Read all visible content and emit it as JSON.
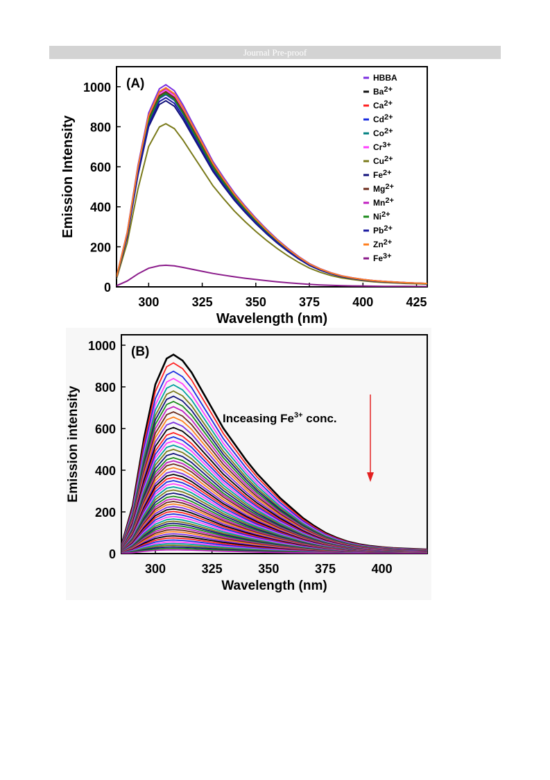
{
  "banner": {
    "text": "Journal Pre-proof"
  },
  "chart_data": [
    {
      "type": "line",
      "panel_label": "(A)",
      "xlabel": "Wavelength (nm)",
      "ylabel": "Emission Intensity",
      "xlim": [
        285,
        430
      ],
      "ylim": [
        0,
        1100
      ],
      "xticks": [
        300,
        325,
        350,
        375,
        400,
        425
      ],
      "yticks": [
        0,
        200,
        400,
        600,
        800,
        1000
      ],
      "grid": false,
      "legend_position": "top-right",
      "x": [
        285,
        290,
        295,
        300,
        305,
        308,
        312,
        316,
        320,
        325,
        330,
        335,
        340,
        345,
        350,
        355,
        360,
        365,
        370,
        375,
        380,
        385,
        390,
        395,
        400,
        405,
        410,
        415,
        420,
        425,
        430
      ],
      "series": [
        {
          "name": "HBBA",
          "color": "#7b2fe0",
          "peak": 1010
        },
        {
          "name": "Ba2+",
          "color": "#111111",
          "peak": 990
        },
        {
          "name": "Ca2+",
          "color": "#ff2020",
          "peak": 975
        },
        {
          "name": "Cd2+",
          "color": "#1a2ee0",
          "peak": 960
        },
        {
          "name": "Co2+",
          "color": "#008080",
          "peak": 970
        },
        {
          "name": "Cr3+",
          "color": "#ff40ff",
          "peak": 985
        },
        {
          "name": "Cu2+",
          "color": "#7a7a1a",
          "peak": 815
        },
        {
          "name": "Fe2+",
          "color": "#10107a",
          "peak": 930
        },
        {
          "name": "Mg2+",
          "color": "#6b2a1a",
          "peak": 975
        },
        {
          "name": "Mn2+",
          "color": "#c020c0",
          "peak": 995
        },
        {
          "name": "Ni2+",
          "color": "#1a8a1a",
          "peak": 965
        },
        {
          "name": "Pb2+",
          "color": "#1a1aa0",
          "peak": 945
        },
        {
          "name": "Zn2+",
          "color": "#ff8020",
          "peak": 995
        },
        {
          "name": "Fe3+",
          "color": "#8a1a8a",
          "peak": 108
        }
      ],
      "shape": [
        0.05,
        0.27,
        0.6,
        0.86,
        0.98,
        1.0,
        0.97,
        0.9,
        0.82,
        0.72,
        0.62,
        0.54,
        0.465,
        0.4,
        0.34,
        0.285,
        0.235,
        0.19,
        0.15,
        0.115,
        0.09,
        0.07,
        0.055,
        0.045,
        0.037,
        0.031,
        0.027,
        0.024,
        0.021,
        0.019,
        0.017
      ],
      "legend": [
        {
          "ion": "HBBA",
          "charge": ""
        },
        {
          "ion": "Ba",
          "charge": "2+"
        },
        {
          "ion": "Ca",
          "charge": "2+"
        },
        {
          "ion": "Cd",
          "charge": "2+"
        },
        {
          "ion": "Co",
          "charge": "2+"
        },
        {
          "ion": "Cr",
          "charge": "3+"
        },
        {
          "ion": "Cu",
          "charge": "2+"
        },
        {
          "ion": "Fe",
          "charge": "2+"
        },
        {
          "ion": "Mg",
          "charge": "2+"
        },
        {
          "ion": "Mn",
          "charge": "2+"
        },
        {
          "ion": "Ni",
          "charge": "2+"
        },
        {
          "ion": "Pb",
          "charge": "2+"
        },
        {
          "ion": "Zn",
          "charge": "2+"
        },
        {
          "ion": "Fe",
          "charge": "3+"
        }
      ]
    },
    {
      "type": "line",
      "panel_label": "(B)",
      "xlabel": "Wavelength (nm)",
      "ylabel": "Emission intensity",
      "annotation": {
        "pre": "Inceasing Fe",
        "sup": "3+",
        "post": " conc."
      },
      "xlim": [
        285,
        420
      ],
      "ylim": [
        0,
        1050
      ],
      "xticks": [
        300,
        325,
        350,
        375,
        400
      ],
      "yticks": [
        0,
        200,
        400,
        600,
        800,
        1000
      ],
      "grid": false,
      "x": [
        285,
        290,
        295,
        300,
        305,
        308,
        312,
        316,
        320,
        325,
        330,
        335,
        340,
        345,
        350,
        355,
        360,
        365,
        370,
        375,
        380,
        385,
        390,
        395,
        400,
        405,
        410,
        415,
        420
      ],
      "shape": [
        0.04,
        0.24,
        0.58,
        0.85,
        0.98,
        1.0,
        0.97,
        0.91,
        0.83,
        0.73,
        0.63,
        0.55,
        0.47,
        0.4,
        0.34,
        0.28,
        0.23,
        0.18,
        0.14,
        0.105,
        0.08,
        0.06,
        0.047,
        0.038,
        0.032,
        0.028,
        0.025,
        0.023,
        0.021
      ],
      "peaks": [
        955,
        915,
        875,
        840,
        810,
        780,
        755,
        730,
        705,
        680,
        655,
        630,
        605,
        580,
        560,
        540,
        520,
        500,
        480,
        460,
        445,
        430,
        412,
        395,
        380,
        365,
        350,
        335,
        320,
        305,
        290,
        275,
        262,
        250,
        238,
        226,
        214,
        202,
        190,
        178,
        166,
        155,
        145,
        135,
        125,
        115,
        105,
        95,
        85,
        75,
        65,
        56,
        48,
        40,
        32,
        25,
        18
      ],
      "colors": [
        "#000000",
        "#ff2020",
        "#1a2ee0",
        "#ff40ff",
        "#00a0a0",
        "#7a7a1a",
        "#10107a",
        "#1a8a1a",
        "#c020c0",
        "#6b2a1a",
        "#ff8020",
        "#7b2fe0"
      ]
    }
  ]
}
